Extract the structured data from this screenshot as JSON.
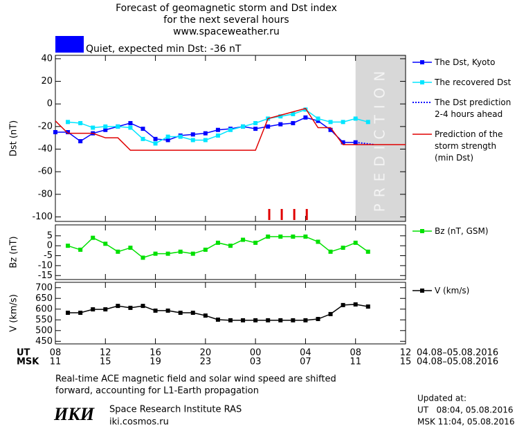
{
  "header": {
    "title_lines": [
      "Forecast of geomagnetic storm and Dst index",
      "for the next several hours",
      "www.spaceweather.ru"
    ],
    "status": {
      "color": "#0000ff",
      "text": "Quiet, expected min Dst: -36 nT"
    }
  },
  "chart_data": [
    {
      "type": "line",
      "ylabel": "Dst (nT)",
      "xlim": [
        8,
        36
      ],
      "ylim": [
        -104,
        43
      ],
      "yticks": [
        40,
        20,
        0,
        -20,
        -40,
        -60,
        -80,
        -100
      ],
      "prediction": {
        "label": "PREDICTION",
        "xlim": [
          32,
          36
        ],
        "color": "#d8d8d8"
      },
      "markers": {
        "color": "#e00000",
        "x": [
          25.1,
          26.1,
          27.1,
          28.1
        ]
      },
      "series": [
        {
          "name": "The Dst, Kyoto",
          "color": "#0000ff",
          "marker": "square",
          "x": [
            8,
            9,
            10,
            11,
            12,
            13,
            14,
            15,
            16,
            17,
            18,
            19,
            20,
            21,
            22,
            23,
            24,
            25,
            26,
            27,
            28,
            29,
            30,
            31,
            32
          ],
          "values": [
            -25,
            -25,
            -33,
            -26,
            -23,
            -20,
            -17,
            -22,
            -31,
            -32,
            -28,
            -27,
            -26,
            -23,
            -22,
            -20,
            -22,
            -20,
            -18,
            -17,
            -12,
            -15,
            -23,
            -34,
            -34
          ]
        },
        {
          "name": "The recovered Dst",
          "color": "#00e5ff",
          "marker": "square",
          "x": [
            9,
            10,
            11,
            12,
            13,
            14,
            15,
            16,
            17,
            18,
            19,
            20,
            21,
            22,
            23,
            24,
            25,
            26,
            27,
            28,
            29,
            30,
            31,
            32,
            33
          ],
          "values": [
            -16,
            -17,
            -21,
            -20,
            -20,
            -21,
            -31,
            -35,
            -29,
            -29,
            -32,
            -32,
            -28,
            -23,
            -20,
            -17,
            -13,
            -11,
            -9,
            -5,
            -13,
            -16,
            -16,
            -13,
            -16
          ]
        },
        {
          "name": "The Dst prediction\n2-4 hours ahead",
          "color": "#0000ff",
          "line_style": "dotted",
          "x": [
            32,
            33.5
          ],
          "values": [
            -34,
            -36
          ]
        },
        {
          "name": "Prediction of the\nstorm strength\n(min Dst)",
          "color": "#e00000",
          "x": [
            8,
            9,
            11,
            12,
            13,
            14,
            24,
            25,
            28,
            29,
            30,
            31,
            36
          ],
          "values": [
            -15,
            -26,
            -26,
            -30,
            -30,
            -41,
            -41,
            -13,
            -4,
            -21,
            -21,
            -36,
            -36
          ]
        }
      ]
    },
    {
      "type": "line",
      "ylabel": "Bz (nT)",
      "xlim": [
        8,
        36
      ],
      "ylim": [
        -17,
        10.5
      ],
      "yticks": [
        5,
        0,
        -5,
        -10,
        -15
      ],
      "series": [
        {
          "name": "Bz (nT, GSM)",
          "color": "#00e000",
          "marker": "square",
          "x": [
            9,
            10,
            11,
            12,
            13,
            14,
            15,
            16,
            17,
            18,
            19,
            20,
            21,
            22,
            23,
            24,
            25,
            26,
            27,
            28,
            29,
            30,
            31,
            32,
            33
          ],
          "values": [
            0,
            -2,
            4,
            1,
            -3,
            -1,
            -6,
            -4,
            -4,
            -3,
            -4,
            -2,
            1.5,
            0,
            3,
            1.5,
            4.6,
            4.6,
            4.6,
            4.6,
            2,
            -3,
            -1,
            1.5,
            -3
          ]
        }
      ]
    },
    {
      "type": "line",
      "ylabel": "V (km/s)",
      "xlim": [
        8,
        36
      ],
      "ylim": [
        438,
        725
      ],
      "yticks": [
        700,
        650,
        600,
        550,
        500,
        450
      ],
      "xlabel": "UT",
      "xlabel_msk": "MSK",
      "date_range": "04.08–05.08.2016",
      "xticks": [
        {
          "value": 8,
          "label": "08"
        },
        12,
        16,
        20,
        {
          "value": 24,
          "label": "00"
        },
        {
          "value": 28,
          "label": "04"
        },
        {
          "value": 32,
          "label": "08"
        },
        {
          "value": 36,
          "label": "12"
        }
      ],
      "xticks_msk": [
        {
          "value": 8,
          "label": "11"
        },
        {
          "value": 12,
          "label": "15"
        },
        {
          "value": 16,
          "label": "19"
        },
        {
          "value": 20,
          "label": "23"
        },
        {
          "value": 24,
          "label": "03"
        },
        {
          "value": 28,
          "label": "07"
        },
        {
          "value": 32,
          "label": "11"
        },
        {
          "value": 36,
          "label": "15"
        }
      ],
      "series": [
        {
          "name": "V (km/s)",
          "color": "#000000",
          "marker": "square",
          "x": [
            9,
            10,
            11,
            12,
            13,
            14,
            15,
            16,
            17,
            18,
            19,
            20,
            21,
            22,
            23,
            24,
            25,
            26,
            27,
            28,
            29,
            30,
            31,
            32,
            33
          ],
          "values": [
            583,
            583,
            599,
            599,
            615,
            606,
            615,
            593,
            593,
            583,
            583,
            570,
            551,
            548,
            548,
            548,
            548,
            548,
            548,
            548,
            554,
            577,
            619,
            622,
            612
          ]
        }
      ]
    }
  ],
  "footer": {
    "note_lines": [
      "Real-time ACE magnetic field and solar wind speed are shifted",
      "forward, accounting for L1-Earth propagation"
    ],
    "logo": "ИКИ",
    "institute": "Space Research Institute RAS",
    "website": "iki.cosmos.ru",
    "updated": [
      "Updated at:",
      "UT   08:04, 05.08.2016",
      "MSK 11:04, 05.08.2016"
    ]
  }
}
